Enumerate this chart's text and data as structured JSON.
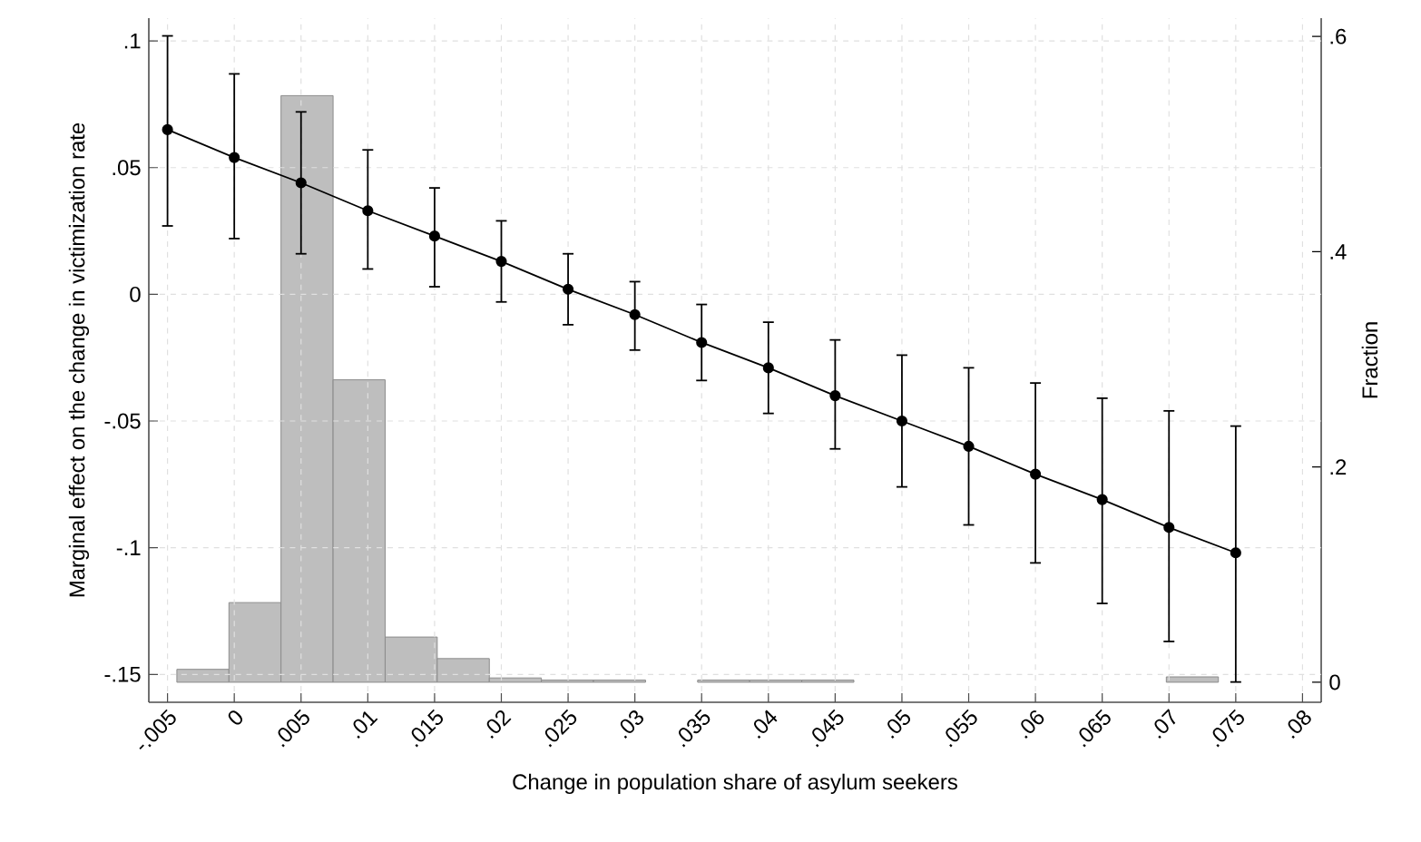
{
  "chart_data": {
    "type": "line",
    "xlabel": "Change in population share of asylum seekers",
    "ylabel": "Marginal effect on the change in victimization rate",
    "y2label": "Fraction",
    "xlim": [
      -0.0064,
      0.0814
    ],
    "xticks": [
      {
        "value": -0.005,
        "label": "-.005"
      },
      0,
      {
        "value": 0.005,
        "label": ".005"
      },
      {
        "value": 0.01,
        "label": ".01"
      },
      {
        "value": 0.015,
        "label": ".015"
      },
      {
        "value": 0.02,
        "label": ".02"
      },
      {
        "value": 0.025,
        "label": ".025"
      },
      {
        "value": 0.03,
        "label": ".03"
      },
      {
        "value": 0.035,
        "label": ".035"
      },
      {
        "value": 0.04,
        "label": ".04"
      },
      {
        "value": 0.045,
        "label": ".045"
      },
      {
        "value": 0.05,
        "label": ".05"
      },
      {
        "value": 0.055,
        "label": ".055"
      },
      {
        "value": 0.06,
        "label": ".06"
      },
      {
        "value": 0.065,
        "label": ".065"
      },
      {
        "value": 0.07,
        "label": ".07"
      },
      {
        "value": 0.075,
        "label": ".075"
      },
      {
        "value": 0.08,
        "label": ".08"
      }
    ],
    "ylim": [
      -0.161,
      0.109
    ],
    "yticks": [
      {
        "value": -0.15,
        "label": "-.15"
      },
      {
        "value": -0.1,
        "label": "-.1"
      },
      {
        "value": -0.05,
        "label": "-.05"
      },
      0,
      {
        "value": 0.05,
        "label": ".05"
      },
      {
        "value": 0.1,
        "label": ".1"
      }
    ],
    "y2lim": [
      -0.0186,
      0.617
    ],
    "y2ticks": [
      0,
      {
        "value": 0.2,
        "label": ".2"
      },
      {
        "value": 0.4,
        "label": ".4"
      },
      {
        "value": 0.6,
        "label": ".6"
      }
    ],
    "grid": true,
    "marker": "circle",
    "series": [
      {
        "color": "#000000",
        "x": [
          -0.005,
          0,
          0.005,
          0.01,
          0.015,
          0.02,
          0.025,
          0.03,
          0.035,
          0.04,
          0.045,
          0.05,
          0.055,
          0.06,
          0.065,
          0.07,
          0.075
        ],
        "values": [
          0.065,
          0.054,
          0.044,
          0.033,
          0.023,
          0.013,
          0.002,
          -0.008,
          -0.019,
          -0.029,
          -0.04,
          -0.05,
          -0.06,
          -0.071,
          -0.081,
          -0.092,
          -0.102
        ],
        "errors": [
          [
            0.027,
            0.102
          ],
          [
            0.022,
            0.087
          ],
          [
            0.016,
            0.072
          ],
          [
            0.01,
            0.057
          ],
          [
            0.003,
            0.042
          ],
          [
            -0.003,
            0.029
          ],
          [
            -0.012,
            0.016
          ],
          [
            -0.022,
            0.005
          ],
          [
            -0.034,
            -0.004
          ],
          [
            -0.047,
            -0.011
          ],
          [
            -0.061,
            -0.018
          ],
          [
            -0.076,
            -0.024
          ],
          [
            -0.091,
            -0.029
          ],
          [
            -0.106,
            -0.035
          ],
          [
            -0.122,
            -0.041
          ],
          [
            -0.137,
            -0.046
          ],
          [
            -0.153,
            -0.052
          ]
        ]
      },
      {
        "type": "histogram",
        "axis": "y2",
        "color": "#bebebe",
        "bins": [
          -0.0043,
          -0.0004,
          0.0035,
          0.0074,
          0.0113,
          0.0152,
          0.0191,
          0.023,
          0.0269,
          0.0308,
          0.0347,
          0.0386,
          0.0425,
          0.0464,
          0.0503,
          0.0542,
          0.0581,
          0.062,
          0.0659,
          0.0698,
          0.0737
        ],
        "values": [
          0.012,
          0.074,
          0.545,
          0.281,
          0.042,
          0.022,
          0.004,
          0.002,
          0.002,
          0,
          0.002,
          0.002,
          0.002,
          0,
          0,
          0,
          0,
          0,
          0,
          0.005
        ]
      }
    ]
  }
}
